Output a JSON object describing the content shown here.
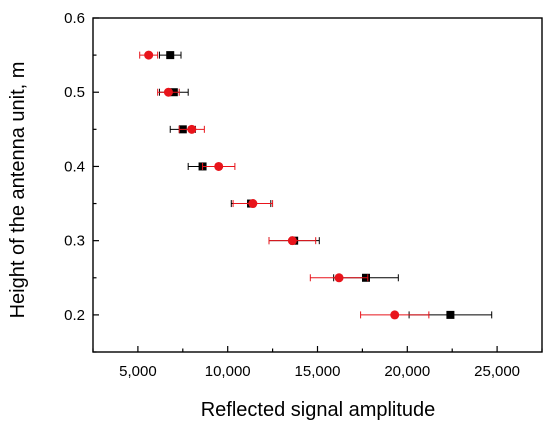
{
  "chart_data": {
    "type": "scatter",
    "title": "",
    "xlabel": "Reflected signal amplitude",
    "ylabel": "Height of the antenna unit, m",
    "xlim": [
      2500,
      27500
    ],
    "ylim": [
      0.15,
      0.6
    ],
    "xticks": [
      5000,
      10000,
      15000,
      20000,
      25000
    ],
    "xtick_labels": [
      "5,000",
      "10,000",
      "15,000",
      "20,000",
      "25,000"
    ],
    "yticks": [
      0.2,
      0.3,
      0.4,
      0.5,
      0.6
    ],
    "ytick_labels": [
      "0.2",
      "0.3",
      "0.4",
      "0.5",
      "0.6"
    ],
    "grid": false,
    "legend": "none",
    "series": [
      {
        "marker": "square",
        "color": "#000000",
        "points": [
          {
            "x": 6800,
            "y": 0.55,
            "xerr": 600
          },
          {
            "x": 7000,
            "y": 0.5,
            "xerr": 800
          },
          {
            "x": 7500,
            "y": 0.45,
            "xerr": 700
          },
          {
            "x": 8600,
            "y": 0.4,
            "xerr": 800
          },
          {
            "x": 11300,
            "y": 0.35,
            "xerr": 1100
          },
          {
            "x": 13700,
            "y": 0.3,
            "xerr": 1400
          },
          {
            "x": 17700,
            "y": 0.25,
            "xerr": 1800
          },
          {
            "x": 22400,
            "y": 0.2,
            "xerr": 2300
          }
        ]
      },
      {
        "marker": "circle",
        "color": "#e8141b",
        "points": [
          {
            "x": 5600,
            "y": 0.55,
            "xerr": 500
          },
          {
            "x": 6700,
            "y": 0.5,
            "xerr": 600
          },
          {
            "x": 8000,
            "y": 0.45,
            "xerr": 700
          },
          {
            "x": 9500,
            "y": 0.4,
            "xerr": 900
          },
          {
            "x": 11400,
            "y": 0.35,
            "xerr": 1100
          },
          {
            "x": 13600,
            "y": 0.3,
            "xerr": 1300
          },
          {
            "x": 16200,
            "y": 0.25,
            "xerr": 1600
          },
          {
            "x": 19300,
            "y": 0.2,
            "xerr": 1900
          }
        ]
      }
    ]
  }
}
